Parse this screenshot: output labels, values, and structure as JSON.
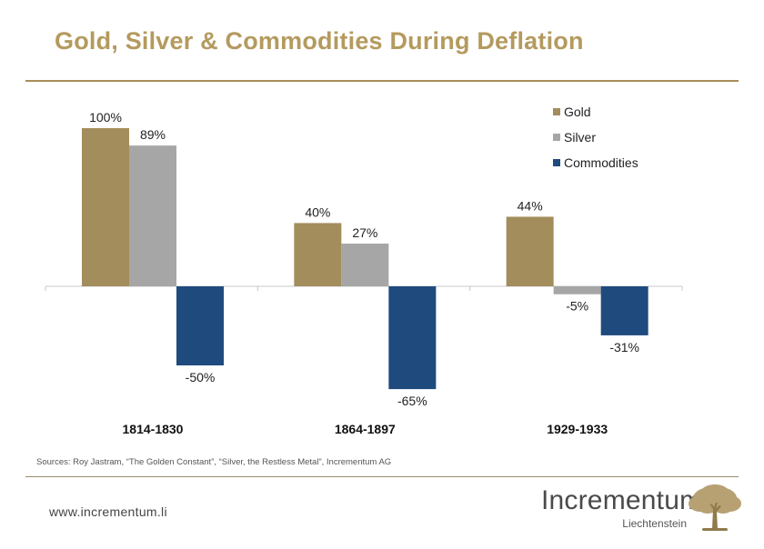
{
  "header": {
    "title": "Gold, Silver & Commodities During Deflation"
  },
  "chart_data": {
    "type": "bar",
    "categories": [
      "1814-1830",
      "1864-1897",
      "1929-1933"
    ],
    "series": [
      {
        "name": "Gold",
        "color": "#a38d5c",
        "values": [
          100,
          40,
          44
        ]
      },
      {
        "name": "Silver",
        "color": "#a6a6a6",
        "values": [
          89,
          27,
          -5
        ]
      },
      {
        "name": "Commodities",
        "color": "#1f4a7e",
        "values": [
          -50,
          -65,
          -31
        ]
      }
    ],
    "data_labels": [
      [
        "100%",
        "40%",
        "44%"
      ],
      [
        "89%",
        "27%",
        "-5%"
      ],
      [
        "-50%",
        "-65%",
        "-31%"
      ]
    ],
    "ylim": [
      -70,
      110
    ],
    "legend_position": "top-right",
    "value_suffix": "%"
  },
  "footer": {
    "source": "Sources: Roy Jastram, “The Golden Constant”, “Silver, the Restless Metal”, Incrementum AG",
    "website": "www.incrementum.li",
    "brand_name": "Incrementum",
    "brand_sub": "Liechtenstein"
  },
  "icons": {
    "logo": "oak-tree-icon"
  }
}
